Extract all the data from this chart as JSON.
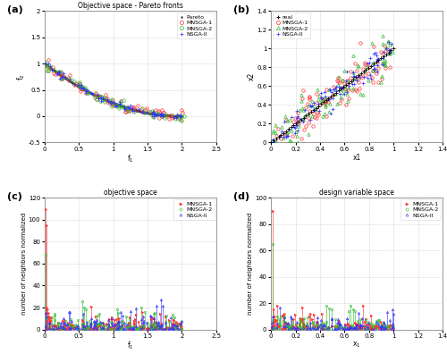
{
  "fig_width": 5.0,
  "fig_height": 4.05,
  "dpi": 100,
  "panel_a": {
    "title": "Objective space - Pareto fronts",
    "xlabel": "f_1",
    "ylabel": "f_2",
    "xlim": [
      0,
      2.5
    ],
    "ylim": [
      -0.5,
      2.0
    ],
    "xticks": [
      0,
      0.5,
      1.0,
      1.5,
      2.0,
      2.5
    ],
    "yticks": [
      -0.5,
      0,
      0.5,
      1.0,
      1.5,
      2.0
    ],
    "xticklabels": [
      "0",
      "0.5",
      "1",
      "1.5",
      "2",
      "2.5"
    ],
    "yticklabels": [
      "-0.5",
      "0",
      "0.5",
      "1",
      "1.5",
      "2"
    ],
    "legend_entries": [
      "Pareto",
      "MNSGA-1",
      "MNSGA-2",
      "NSGA-II"
    ],
    "colors": {
      "Pareto": "#333333",
      "MNSGA-1": "#ff3333",
      "MNSGA-2": "#33bb33",
      "NSGA-II": "#3333ff"
    }
  },
  "panel_b": {
    "xlabel": "x1",
    "ylabel": "x2",
    "xlim": [
      0,
      1.4
    ],
    "ylim": [
      0,
      1.4
    ],
    "xticks": [
      0,
      0.2,
      0.4,
      0.6,
      0.8,
      1.0,
      1.2,
      1.4
    ],
    "yticks": [
      0,
      0.2,
      0.4,
      0.6,
      0.8,
      1.0,
      1.2,
      1.4
    ],
    "xticklabels": [
      "0",
      "0.2",
      "0.4",
      "0.6",
      "0.8",
      "1",
      "1.2",
      "1.4"
    ],
    "yticklabels": [
      "0",
      "0.2",
      "0.4",
      "0.6",
      "0.8",
      "1",
      "1.2",
      "1.4"
    ],
    "legend_entries": [
      "real",
      "MNSGA-1",
      "MNSGA-2",
      "NSGA-II"
    ],
    "colors": {
      "real": "#111111",
      "MNSGA-1": "#ff3333",
      "MNSGA-2": "#33bb33",
      "NSGA-II": "#3333ff"
    }
  },
  "panel_c": {
    "title": "objective space",
    "xlabel": "f_1",
    "ylabel": "number of neighbors normalized",
    "xlim": [
      0,
      2.5
    ],
    "ylim": [
      0,
      120
    ],
    "xticks": [
      0,
      0.5,
      1.0,
      1.5,
      2.0,
      2.5
    ],
    "yticks": [
      0,
      20,
      40,
      60,
      80,
      100,
      120
    ],
    "xticklabels": [
      "0",
      "0.5",
      "1",
      "1.5",
      "2",
      "2.5"
    ],
    "yticklabels": [
      "0",
      "20",
      "40",
      "60",
      "80",
      "100",
      "120"
    ],
    "legend_entries": [
      "MNSGA-1",
      "MNSGA-2",
      "NSGA-II"
    ],
    "colors": {
      "MNSGA-1": "#ff3333",
      "MNSGA-2": "#33bb33",
      "NSGA-II": "#3333ff"
    }
  },
  "panel_d": {
    "title": "design variable space",
    "xlabel": "x_1",
    "ylabel": "number of neighbors normalized",
    "xlim": [
      0,
      1.4
    ],
    "ylim": [
      0,
      100
    ],
    "xticks": [
      0,
      0.2,
      0.4,
      0.6,
      0.8,
      1.0,
      1.2,
      1.4
    ],
    "yticks": [
      0,
      20,
      40,
      60,
      80,
      100
    ],
    "xticklabels": [
      "0",
      "0.2",
      "0.4",
      "0.6",
      "0.8",
      "1",
      "1.2",
      "1.4"
    ],
    "yticklabels": [
      "0",
      "20",
      "40",
      "60",
      "80",
      "100"
    ],
    "legend_entries": [
      "MNSGA-1",
      "MNSGA-2",
      "NSGA-II"
    ],
    "colors": {
      "MNSGA-1": "#ff3333",
      "MNSGA-2": "#33bb33",
      "NSGA-II": "#3333ff"
    }
  },
  "label_fontsize": 5.5,
  "title_fontsize": 5.5,
  "tick_fontsize": 5.0,
  "legend_fontsize": 4.5,
  "panel_label_fontsize": 8
}
